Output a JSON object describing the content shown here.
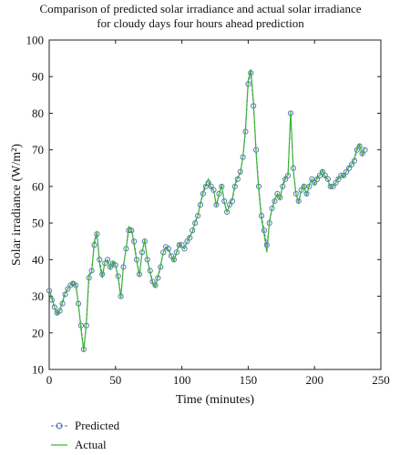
{
  "chart_data": {
    "type": "line",
    "title_lines": [
      "Comparison of predicted solar irradiance and actual solar irradiance",
      "for cloudy days four hours ahead prediction"
    ],
    "xlabel": "Time (minutes)",
    "ylabel": "Solar irradiance (W/m²)",
    "xlim": [
      0,
      250
    ],
    "ylim": [
      10,
      100
    ],
    "xticks": [
      0,
      50,
      100,
      150,
      200,
      250
    ],
    "yticks": [
      10,
      20,
      30,
      40,
      50,
      60,
      70,
      80,
      90,
      100
    ],
    "grid": false,
    "legend_position": "bottom-left",
    "colors": {
      "predicted": "#4a6db0",
      "actual": "#3db338"
    },
    "series": [
      {
        "name": "Predicted",
        "style": "dashed-circle",
        "x": [
          0,
          2,
          4,
          6,
          8,
          10,
          12,
          14,
          16,
          18,
          20,
          22,
          24,
          26,
          28,
          30,
          32,
          34,
          36,
          38,
          40,
          42,
          44,
          46,
          48,
          50,
          52,
          54,
          56,
          58,
          60,
          62,
          64,
          66,
          68,
          70,
          72,
          74,
          76,
          78,
          80,
          82,
          84,
          86,
          88,
          90,
          92,
          94,
          96,
          98,
          100,
          102,
          104,
          106,
          108,
          110,
          112,
          114,
          116,
          118,
          120,
          122,
          124,
          126,
          128,
          130,
          132,
          134,
          136,
          138,
          140,
          142,
          144,
          146,
          148,
          150,
          152,
          154,
          156,
          158,
          160,
          162,
          164,
          166,
          168,
          170,
          172,
          174,
          176,
          178,
          180,
          182,
          184,
          186,
          188,
          190,
          192,
          194,
          196,
          198,
          200,
          202,
          204,
          206,
          208,
          210,
          212,
          214,
          216,
          218,
          220,
          222,
          224,
          226,
          228,
          230,
          232,
          234,
          236,
          238
        ],
        "y": [
          31.5,
          29,
          27,
          25.5,
          26,
          28,
          30.5,
          32,
          33,
          33.5,
          33,
          28,
          22,
          15.5,
          22,
          35,
          37,
          44,
          47,
          40,
          36,
          39,
          40,
          38,
          39,
          38.5,
          35.5,
          30,
          38,
          43,
          48,
          48,
          45,
          40,
          36,
          42,
          45,
          40,
          37,
          34,
          33,
          35,
          38,
          42,
          43.5,
          43,
          41,
          40,
          42,
          44,
          44,
          43,
          45,
          46,
          48,
          50,
          52,
          55,
          58,
          60,
          61,
          60,
          59,
          55,
          58,
          60,
          56,
          53,
          55,
          56,
          60,
          62,
          64,
          68,
          75,
          88,
          91,
          82,
          70,
          60,
          52,
          48,
          44,
          50,
          54,
          56,
          58,
          57,
          60,
          62,
          63,
          80,
          65,
          58,
          56,
          59,
          60,
          58,
          60,
          62,
          61,
          62,
          63,
          64,
          63,
          62,
          60,
          60,
          61,
          62,
          63,
          63,
          64,
          65,
          66,
          67,
          70,
          71,
          69,
          70
        ],
        "y_observed_approx": true
      },
      {
        "name": "Actual",
        "style": "solid",
        "x": [
          0,
          2,
          4,
          6,
          8,
          10,
          12,
          14,
          16,
          18,
          20,
          22,
          24,
          26,
          28,
          30,
          32,
          34,
          36,
          38,
          40,
          42,
          44,
          46,
          48,
          50,
          52,
          54,
          56,
          58,
          60,
          62,
          64,
          66,
          68,
          70,
          72,
          74,
          76,
          78,
          80,
          82,
          84,
          86,
          88,
          90,
          92,
          94,
          96,
          98,
          100,
          102,
          104,
          106,
          108,
          110,
          112,
          114,
          116,
          118,
          120,
          122,
          124,
          126,
          128,
          130,
          132,
          134,
          136,
          138,
          140,
          142,
          144,
          146,
          148,
          150,
          152,
          154,
          156,
          158,
          160,
          162,
          164,
          166,
          168,
          170,
          172,
          174,
          176,
          178,
          180,
          182,
          184,
          186,
          188,
          190,
          192,
          194,
          196,
          198,
          200,
          202,
          204,
          206,
          208,
          210,
          212,
          214,
          216,
          218,
          220,
          222,
          224,
          226,
          228,
          230,
          232,
          234,
          236,
          238
        ],
        "y": [
          32,
          29.5,
          27,
          25,
          26,
          28.5,
          31,
          32,
          33,
          34,
          33.5,
          28,
          21,
          15,
          23,
          36,
          36.5,
          45,
          47.5,
          39,
          35,
          39.5,
          40,
          37.5,
          39.5,
          38.5,
          35,
          29.5,
          38.5,
          43,
          49,
          48.5,
          44,
          39.5,
          35.5,
          42,
          45.5,
          40,
          36.5,
          33.5,
          32.5,
          35.5,
          38.5,
          42,
          43.5,
          42.5,
          41,
          39.5,
          42,
          44.5,
          43.5,
          43,
          45,
          46.5,
          47.5,
          50.5,
          52,
          55.5,
          58.5,
          60.5,
          62,
          59.5,
          59,
          54.5,
          58,
          60.5,
          55.5,
          53,
          55,
          56.5,
          60.5,
          62.5,
          63.5,
          68,
          76,
          89,
          92,
          83,
          69,
          59,
          51,
          47,
          42,
          50.5,
          54,
          56.5,
          58,
          56.5,
          60.5,
          62.5,
          63,
          80.5,
          64.5,
          58,
          55.5,
          59,
          60.5,
          57.5,
          60.5,
          62,
          60.5,
          62.5,
          63,
          64.5,
          62.5,
          62,
          59.5,
          60,
          61,
          62.5,
          63,
          62.5,
          64,
          65.5,
          66,
          67.5,
          70.5,
          71.5,
          68.5,
          70.5
        ],
        "y_observed_approx": true
      }
    ]
  }
}
